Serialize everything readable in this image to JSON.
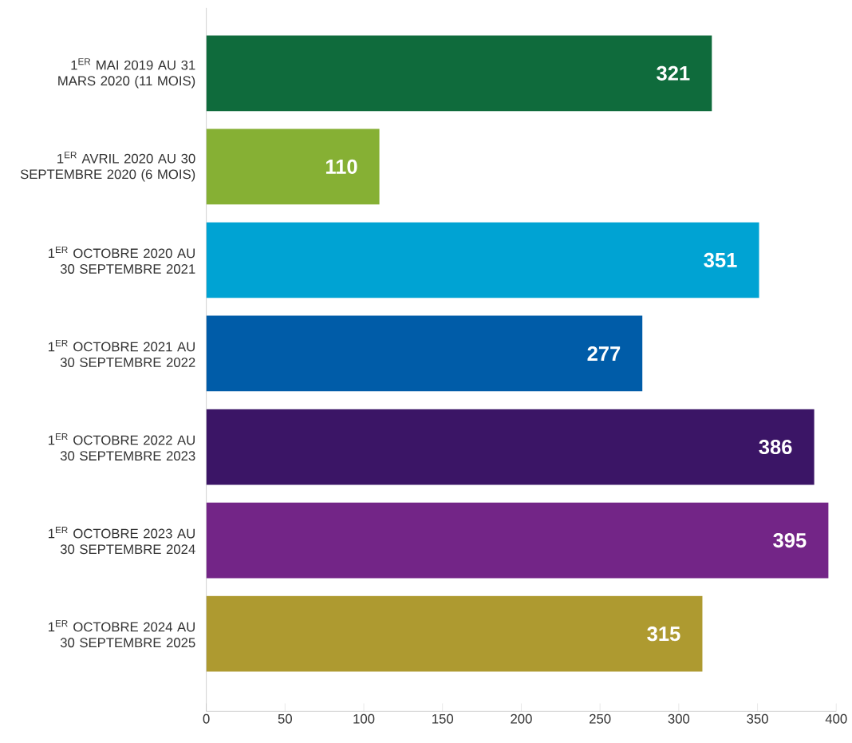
{
  "chart_data": {
    "type": "bar",
    "orientation": "horizontal",
    "categories": [
      "1$^{ER}$ MAI 2019 AU 31 MARS 2020 (11 MOIS)",
      "1$^{ER}$ AVRIL 2020 AU 30 SEPTEMBRE 2020 (6 MOIS)",
      "1$^{ER}$ OCTOBRE 2020 AU 30 SEPTEMBRE 2021",
      "1$^{ER}$ OCTOBRE 2021 AU 30 SEPTEMBRE 2022",
      "1$^{ER}$ OCTOBRE 2022 AU 30 SEPTEMBRE 2023",
      "1$^{ER}$ OCTOBRE 2023 AU 30 SEPTEMBRE 2024",
      "1$^{ER}$ OCTOBRE 2024 AU 30 SEPTEMBRE 2025"
    ],
    "values": [
      321,
      110,
      351,
      277,
      386,
      395,
      315
    ],
    "colors": [
      "#0f6b3c",
      "#86b034",
      "#00a3d3",
      "#005ca8",
      "#3b1566",
      "#732587",
      "#ae9a30"
    ],
    "data_labels": true,
    "xlim": [
      0,
      400
    ],
    "xticks": [
      0,
      50,
      100,
      150,
      200,
      250,
      300,
      350,
      400
    ],
    "grid": false
  }
}
